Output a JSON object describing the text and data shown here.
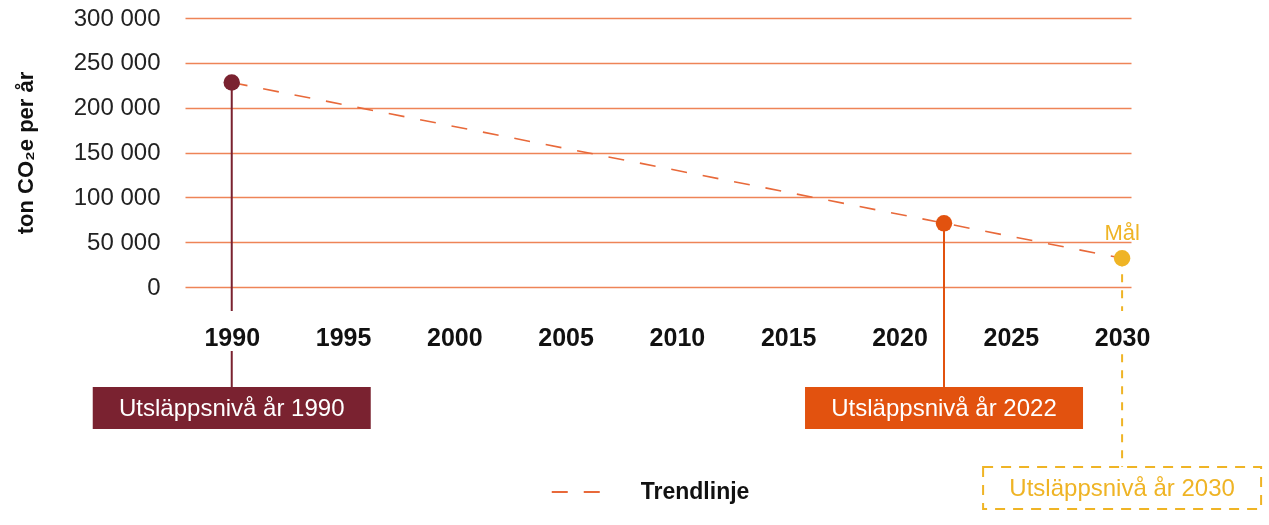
{
  "chart_data": {
    "type": "scatter",
    "ylabel": "ton CO₂e per år",
    "xlim": [
      1987.9,
      2030.4
    ],
    "xticks": [
      1990,
      1995,
      2000,
      2005,
      2010,
      2015,
      2020,
      2025,
      2030
    ],
    "ylim": [
      0,
      300000
    ],
    "yticks": [
      0,
      {
        "value": 50000,
        "label": "50 000"
      },
      {
        "value": 100000,
        "label": "100 000"
      },
      {
        "value": 150000,
        "label": "150 000"
      },
      {
        "value": 200000,
        "label": "200 000"
      },
      {
        "value": 250000,
        "label": "250 000"
      },
      {
        "value": 300000,
        "label": "300 000"
      }
    ],
    "grid": "y",
    "legend": "bottom",
    "series": [
      {
        "type": "line",
        "name": "Trendlinje",
        "color": "#e8693a",
        "line_style": "dashed",
        "x": [
          1990,
          2030
        ],
        "values": [
          228000,
          32000
        ]
      },
      {
        "x": [
          1990,
          2022,
          2030
        ],
        "values": [
          228000,
          71000,
          32000
        ],
        "colors": [
          "#7a2230",
          "#e2520f",
          "#efb425"
        ],
        "marker": "circle"
      }
    ],
    "ref_lines": [
      {
        "axis": "x",
        "value": 1990,
        "label": "Utsläppsnivå år 1990",
        "color": "#7a2230"
      },
      {
        "axis": "x",
        "value": 2022,
        "label": "Utsläppsnivå år 2022",
        "color": "#e2520f"
      },
      {
        "axis": "x",
        "value": 2030,
        "label": "Utsläppsnivå år 2030",
        "color": "#efb425",
        "line_style": "dashed"
      }
    ],
    "annotations": [
      {
        "text": "Mål",
        "x": 2030,
        "y": 32000
      }
    ]
  }
}
